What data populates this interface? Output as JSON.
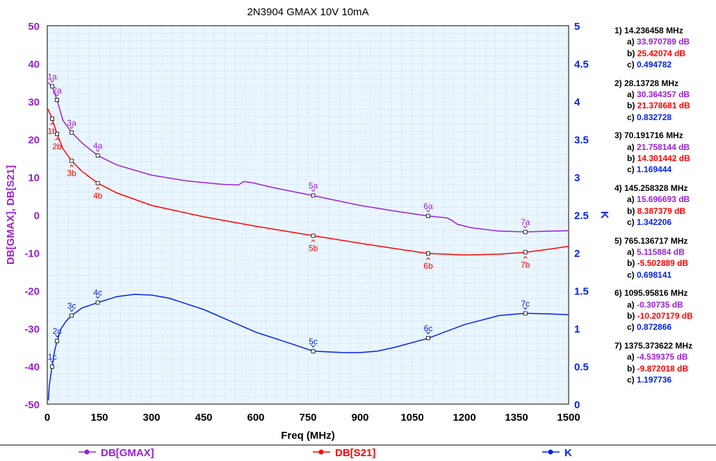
{
  "chart_data": {
    "type": "line",
    "title": "2N3904 GMAX 10V 10mA",
    "xlabel": "Freq (MHz)",
    "ylabel": "DB[GMAX], DB[S21]",
    "y2label": "K",
    "xlim": [
      0,
      1500
    ],
    "ylim": [
      -50,
      50
    ],
    "y2lim": [
      0,
      5
    ],
    "xticks": [
      "0",
      "150",
      "300",
      "450",
      "600",
      "750",
      "900",
      "1050",
      "1200",
      "1350",
      "1500"
    ],
    "yticks": [
      "50",
      "40",
      "30",
      "20",
      "10",
      "0",
      "-10",
      "-20",
      "-30",
      "-40",
      "-50"
    ],
    "y2ticks": [
      "5",
      "4.5",
      "4",
      "3.5",
      "3",
      "2.5",
      "2",
      "1.5",
      "1",
      "0.5",
      "0"
    ],
    "grid": true,
    "series": [
      {
        "name": "DB[GMAX]",
        "color": "#9b1fd6",
        "axis": "left",
        "x": [
          2,
          14,
          28,
          45,
          70,
          100,
          145,
          200,
          300,
          400,
          500,
          550,
          558,
          565,
          590,
          650,
          765,
          900,
          1000,
          1096,
          1150,
          1165,
          1180,
          1220,
          1300,
          1375,
          1450,
          1500
        ],
        "y": [
          35,
          34,
          30.4,
          25,
          21.8,
          19,
          15.7,
          13.2,
          10.5,
          9,
          8.1,
          7.9,
          8.4,
          8.8,
          8.5,
          7.2,
          5.1,
          2.5,
          1,
          -0.3,
          -0.8,
          -1.5,
          -2.5,
          -3.4,
          -4.3,
          -4.5,
          -4.3,
          -4.2
        ]
      },
      {
        "name": "DB[S21]",
        "color": "#ff0000",
        "axis": "left",
        "x": [
          2,
          14,
          28,
          45,
          70,
          100,
          145,
          200,
          300,
          450,
          600,
          765,
          900,
          1000,
          1096,
          1200,
          1300,
          1375,
          1450,
          1500
        ],
        "y": [
          28,
          25.4,
          21.4,
          17.5,
          14.3,
          11.5,
          8.4,
          5.8,
          2.5,
          -0.5,
          -3,
          -5.5,
          -7.5,
          -8.9,
          -10.2,
          -10.6,
          -10.4,
          -9.9,
          -9,
          -8.3
        ]
      },
      {
        "name": "K",
        "color": "#0022ee",
        "axis": "right",
        "x": [
          3,
          6,
          10,
          14,
          20,
          28,
          40,
          55,
          70,
          100,
          145,
          200,
          250,
          300,
          350,
          450,
          550,
          600,
          700,
          765,
          850,
          900,
          950,
          1000,
          1096,
          1200,
          1300,
          1375,
          1450,
          1500
        ],
        "y": [
          0.05,
          0.25,
          0.38,
          0.49,
          0.68,
          0.83,
          1.0,
          1.1,
          1.17,
          1.27,
          1.34,
          1.42,
          1.45,
          1.44,
          1.4,
          1.25,
          1.05,
          0.95,
          0.8,
          0.7,
          0.68,
          0.68,
          0.7,
          0.75,
          0.87,
          1.05,
          1.17,
          1.2,
          1.19,
          1.18
        ]
      }
    ],
    "markers": [
      {
        "id": "1",
        "freq": "14.236458 MHz",
        "x": 14.236458,
        "a": "33.970789 dB",
        "av": 33.970789,
        "b": "25.42074 dB",
        "bv": 25.42074,
        "c": "0.494782",
        "cv": 0.494782
      },
      {
        "id": "2",
        "freq": "28.13728 MHz",
        "x": 28.13728,
        "a": "30.364357 dB",
        "av": 30.364357,
        "b": "21.378681 dB",
        "bv": 21.378681,
        "c": "0.832728",
        "cv": 0.832728
      },
      {
        "id": "3",
        "freq": "70.191716 MHz",
        "x": 70.191716,
        "a": "21.758144 dB",
        "av": 21.758144,
        "b": "14.301442 dB",
        "bv": 14.301442,
        "c": "1.169444",
        "cv": 1.169444
      },
      {
        "id": "4",
        "freq": "145.258328 MHz",
        "x": 145.258328,
        "a": "15.696693 dB",
        "av": 15.696693,
        "b": "8.387379 dB",
        "bv": 8.387379,
        "c": "1.342206",
        "cv": 1.342206
      },
      {
        "id": "5",
        "freq": "765.136717 MHz",
        "x": 765.136717,
        "a": "5.115884 dB",
        "av": 5.115884,
        "b": "-5.502889 dB",
        "bv": -5.502889,
        "c": "0.698141",
        "cv": 0.698141
      },
      {
        "id": "6",
        "freq": "1095.95816 MHz",
        "x": 1095.95816,
        "a": "-0.30735 dB",
        "av": -0.30735,
        "b": "-10.207179 dB",
        "bv": -10.207179,
        "c": "0.872866",
        "cv": 0.872866
      },
      {
        "id": "7",
        "freq": "1375.373622 MHz",
        "x": 1375.373622,
        "a": "-4.539375 dB",
        "av": -4.539375,
        "b": "-9.872018 dB",
        "bv": -9.872018,
        "c": "1.197736",
        "cv": 1.197736
      }
    ]
  }
}
